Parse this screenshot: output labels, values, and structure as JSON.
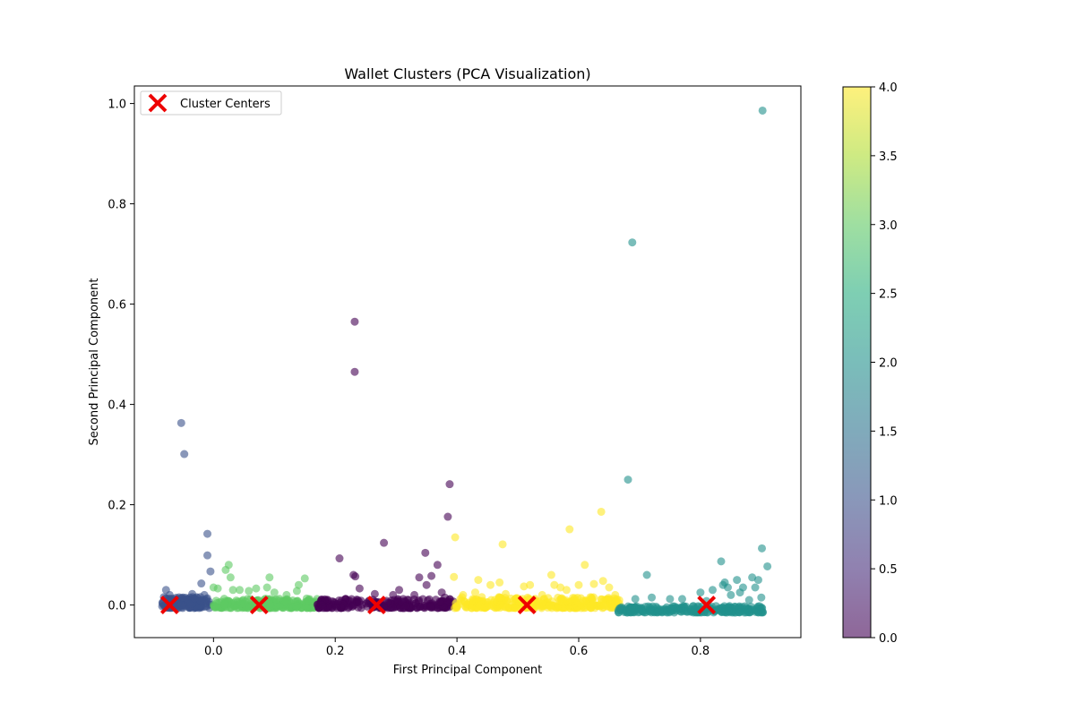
{
  "chart_data": {
    "type": "scatter",
    "title": "Wallet Clusters (PCA Visualization)",
    "xlabel": "First Principal Component",
    "ylabel": "Second Principal Component",
    "xlim": [
      -0.13,
      0.965
    ],
    "ylim": [
      -0.065,
      1.035
    ],
    "xticks": [
      0.0,
      0.2,
      0.4,
      0.6,
      0.8
    ],
    "xtick_labels": [
      "0.0",
      "0.2",
      "0.4",
      "0.6",
      "0.8"
    ],
    "yticks": [
      0.0,
      0.2,
      0.4,
      0.6,
      0.8,
      1.0
    ],
    "ytick_labels": [
      "0.0",
      "0.2",
      "0.4",
      "0.6",
      "0.8",
      "1.0"
    ],
    "grid": false,
    "legend": {
      "position": "top-left",
      "entries": [
        "Cluster Centers"
      ]
    },
    "colorbar": {
      "colormap": "viridis",
      "range": [
        0.0,
        4.0
      ],
      "ticks": [
        0.0,
        0.5,
        1.0,
        1.5,
        2.0,
        2.5,
        3.0,
        3.5,
        4.0
      ],
      "tick_labels": [
        "0.0",
        "0.5",
        "1.0",
        "1.5",
        "2.0",
        "2.5",
        "3.0",
        "3.5",
        "4.0"
      ]
    },
    "cluster_colors": {
      "0": "#440154",
      "1": "#3b528b",
      "2": "#21918c",
      "3": "#5ec962",
      "4": "#fde725"
    },
    "marker_color": "#ee0000",
    "point_alpha": 0.6,
    "series": [
      {
        "cluster": 1,
        "band": {
          "x_range": [
            -0.085,
            -0.005
          ],
          "y_range": [
            -0.006,
            0.016
          ],
          "count": 150
        },
        "points": [
          [
            -0.053,
            0.363
          ],
          [
            -0.048,
            0.301
          ],
          [
            -0.01,
            0.142
          ],
          [
            -0.01,
            0.099
          ],
          [
            -0.005,
            0.067
          ],
          [
            -0.02,
            0.043
          ],
          [
            -0.078,
            0.03
          ],
          [
            -0.035,
            0.022
          ],
          [
            -0.015,
            0.02
          ],
          [
            -0.072,
            0.02
          ],
          [
            -0.05,
            0.015
          ]
        ]
      },
      {
        "cluster": 3,
        "band": {
          "x_range": [
            0.0,
            0.172
          ],
          "y_range": [
            -0.006,
            0.013
          ],
          "count": 220
        },
        "points": [
          [
            0.025,
            0.08
          ],
          [
            0.02,
            0.07
          ],
          [
            0.028,
            0.055
          ],
          [
            0.092,
            0.055
          ],
          [
            0.15,
            0.053
          ],
          [
            0.0,
            0.035
          ],
          [
            0.007,
            0.033
          ],
          [
            0.032,
            0.03
          ],
          [
            0.043,
            0.03
          ],
          [
            0.07,
            0.033
          ],
          [
            0.088,
            0.035
          ],
          [
            0.14,
            0.04
          ],
          [
            0.137,
            0.028
          ],
          [
            0.058,
            0.028
          ],
          [
            0.1,
            0.025
          ],
          [
            0.12,
            0.02
          ]
        ]
      },
      {
        "cluster": 0,
        "band": {
          "x_range": [
            0.17,
            0.395
          ],
          "y_range": [
            -0.006,
            0.013
          ],
          "count": 260
        },
        "points": [
          [
            0.232,
            0.565
          ],
          [
            0.232,
            0.465
          ],
          [
            0.388,
            0.241
          ],
          [
            0.385,
            0.176
          ],
          [
            0.28,
            0.124
          ],
          [
            0.348,
            0.104
          ],
          [
            0.207,
            0.093
          ],
          [
            0.23,
            0.06
          ],
          [
            0.233,
            0.057
          ],
          [
            0.338,
            0.055
          ],
          [
            0.358,
            0.058
          ],
          [
            0.368,
            0.08
          ],
          [
            0.35,
            0.04
          ],
          [
            0.24,
            0.033
          ],
          [
            0.305,
            0.03
          ],
          [
            0.295,
            0.02
          ],
          [
            0.375,
            0.025
          ],
          [
            0.33,
            0.02
          ],
          [
            0.265,
            0.022
          ],
          [
            0.38,
            0.015
          ]
        ]
      },
      {
        "cluster": 4,
        "band": {
          "x_range": [
            0.395,
            0.668
          ],
          "y_range": [
            -0.006,
            0.016
          ],
          "count": 300
        },
        "points": [
          [
            0.397,
            0.135
          ],
          [
            0.475,
            0.121
          ],
          [
            0.585,
            0.151
          ],
          [
            0.637,
            0.186
          ],
          [
            0.61,
            0.08
          ],
          [
            0.395,
            0.056
          ],
          [
            0.555,
            0.06
          ],
          [
            0.435,
            0.05
          ],
          [
            0.455,
            0.04
          ],
          [
            0.625,
            0.042
          ],
          [
            0.64,
            0.048
          ],
          [
            0.56,
            0.04
          ],
          [
            0.57,
            0.035
          ],
          [
            0.47,
            0.045
          ],
          [
            0.51,
            0.037
          ],
          [
            0.52,
            0.04
          ],
          [
            0.6,
            0.04
          ],
          [
            0.65,
            0.035
          ],
          [
            0.43,
            0.025
          ],
          [
            0.48,
            0.022
          ],
          [
            0.58,
            0.03
          ],
          [
            0.66,
            0.02
          ],
          [
            0.41,
            0.02
          ],
          [
            0.54,
            0.02
          ]
        ]
      },
      {
        "cluster": 2,
        "band": {
          "x_range": [
            0.665,
            0.905
          ],
          "y_range": [
            -0.015,
            -0.002
          ],
          "count": 260
        },
        "points": [
          [
            0.902,
            0.986
          ],
          [
            0.688,
            0.723
          ],
          [
            0.681,
            0.25
          ],
          [
            0.901,
            0.113
          ],
          [
            0.834,
            0.087
          ],
          [
            0.91,
            0.077
          ],
          [
            0.712,
            0.06
          ],
          [
            0.885,
            0.055
          ],
          [
            0.86,
            0.05
          ],
          [
            0.895,
            0.05
          ],
          [
            0.837,
            0.04
          ],
          [
            0.845,
            0.035
          ],
          [
            0.87,
            0.035
          ],
          [
            0.84,
            0.045
          ],
          [
            0.82,
            0.03
          ],
          [
            0.865,
            0.025
          ],
          [
            0.89,
            0.035
          ],
          [
            0.8,
            0.025
          ],
          [
            0.693,
            0.012
          ],
          [
            0.75,
            0.012
          ],
          [
            0.77,
            0.012
          ],
          [
            0.72,
            0.015
          ],
          [
            0.9,
            0.015
          ],
          [
            0.88,
            0.01
          ],
          [
            0.85,
            0.02
          ],
          [
            0.81,
            0.008
          ]
        ]
      }
    ],
    "centers": {
      "name": "Cluster Centers",
      "points": [
        [
          -0.072,
          0.0
        ],
        [
          0.075,
          0.0
        ],
        [
          0.268,
          0.0
        ],
        [
          0.515,
          0.0
        ],
        [
          0.81,
          0.0
        ]
      ]
    }
  }
}
